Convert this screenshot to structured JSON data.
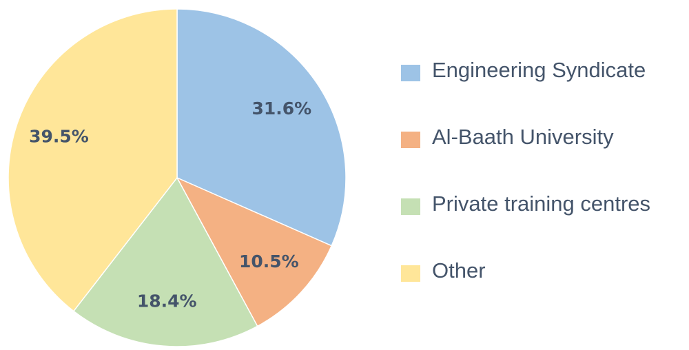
{
  "chart_data": {
    "type": "pie",
    "categories": [
      "Engineering Syndicate",
      "Al-Baath University",
      "Private training centres",
      "Other"
    ],
    "values": [
      31.6,
      10.5,
      18.4,
      39.5
    ],
    "value_labels": [
      "31.6%",
      "10.5%",
      "18.4%",
      "39.5%"
    ],
    "colors": [
      "#9dc3e6",
      "#f4b183",
      "#c5e0b4",
      "#ffe699"
    ],
    "legend": "right"
  }
}
